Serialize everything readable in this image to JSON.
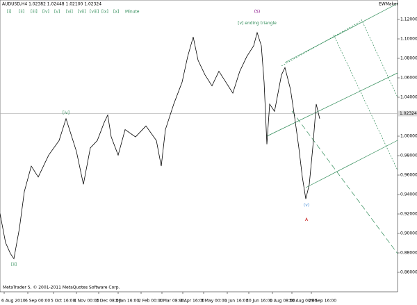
{
  "chart_data": {
    "type": "line",
    "title": "AUDUSD,H4  1.02382 1.02448 1.02100 1.02324",
    "wave_degrees": [
      "[i]",
      "[ii]",
      "[iii]",
      "[iv]",
      "[v]",
      "[vi]",
      "[vii]",
      "[viii]",
      "[ix]",
      "[x]",
      "Minute"
    ],
    "badge": "EWMaker",
    "footer": "MetaTrader 5, © 2001-2011 MetaQuotes Software Corp.",
    "x": [
      0,
      8,
      15,
      20,
      28,
      35,
      45,
      55,
      70,
      85,
      95,
      100,
      110,
      120,
      130,
      140,
      150,
      155,
      160,
      170,
      180,
      195,
      210,
      225,
      232,
      238,
      250,
      262,
      270,
      278,
      285,
      295,
      305,
      315,
      325,
      335,
      345,
      355,
      365,
      370,
      376,
      380,
      384,
      388,
      395,
      405,
      410,
      418,
      425,
      430,
      435,
      440,
      445,
      450,
      455,
      460
    ],
    "series": [
      {
        "name": "AUDUSD",
        "color": "#000000",
        "values": [
          0.9205,
          0.8905,
          0.87925,
          0.874,
          0.9055,
          0.943,
          0.96925,
          0.958,
          0.9805,
          0.9955,
          1.018,
          1.00675,
          0.98425,
          0.9505,
          0.988,
          0.9955,
          1.01425,
          1.02175,
          0.99925,
          0.9805,
          1.00675,
          0.99925,
          1.0105,
          0.9955,
          0.96925,
          1.00675,
          1.033,
          1.0555,
          1.08175,
          1.102,
          1.078,
          1.063,
          1.05175,
          1.06675,
          1.0555,
          1.04425,
          1.06675,
          1.08175,
          1.093,
          1.1065,
          1.093,
          1.0555,
          0.99175,
          1.033,
          1.0255,
          1.063,
          1.0705,
          1.048,
          1.01425,
          0.988,
          0.958,
          0.9355,
          0.9505,
          0.988,
          1.033,
          1.018
        ]
      }
    ],
    "xlim": [
      0,
      572
    ],
    "ylim": [
      0.84,
      1.14
    ],
    "xticks": [
      {
        "value": 6,
        "label": "6 Aug 2010"
      },
      {
        "value": 40,
        "label": "6 Sep 00:00"
      },
      {
        "value": 77,
        "label": "5 Oct 16:00"
      },
      {
        "value": 110,
        "label": "4 Nov 00:00"
      },
      {
        "value": 142,
        "label": "3 Dec 08:00"
      },
      {
        "value": 170,
        "label": "3 Jan 16:00"
      },
      {
        "value": 203,
        "label": "2 Feb 00:00"
      },
      {
        "value": 233,
        "label": "4 Mar 08:00"
      },
      {
        "value": 263,
        "label": "4 Apr 16:00"
      },
      {
        "value": 293,
        "label": "3 May 00:00"
      },
      {
        "value": 327,
        "label": "1 Jun 16:00"
      },
      {
        "value": 358,
        "label": "30 Jun 16:00"
      },
      {
        "value": 392,
        "label": "1 Aug 08:00"
      },
      {
        "value": 420,
        "label": "30 Aug 00:00"
      },
      {
        "value": 448,
        "label": "29 Sep 16:00"
      }
    ],
    "yticks": [
      {
        "value": 0.86,
        "label": "0.86000"
      },
      {
        "value": 0.88,
        "label": "0.88000"
      },
      {
        "value": 0.9,
        "label": "0.90000"
      },
      {
        "value": 0.92,
        "label": "0.92000"
      },
      {
        "value": 0.94,
        "label": "0.94000"
      },
      {
        "value": 0.96,
        "label": "0.96000"
      },
      {
        "value": 0.98,
        "label": "0.98000"
      },
      {
        "value": 1,
        "label": "1.00000"
      },
      {
        "value": 1.04,
        "label": "1.04000"
      },
      {
        "value": 1.06,
        "label": "1.06000"
      },
      {
        "value": 1.08,
        "label": "1.08000"
      },
      {
        "value": 1.1,
        "label": "1.10000"
      },
      {
        "value": 1.12,
        "label": "1.12000"
      }
    ],
    "last_price": {
      "value": 1.02324,
      "label": "1.02324"
    },
    "annotations": [
      {
        "text": "(5)",
        "x": 370,
        "y": 1.128,
        "color": "#800080"
      },
      {
        "text": "[v] ending triangle",
        "x": 370,
        "y": 1.116,
        "color": "#2e8b57"
      },
      {
        "text": "[iv]",
        "x": 95,
        "y": 1.024,
        "color": "#2e8b57"
      },
      {
        "text": "[ii]",
        "x": 20,
        "y": 0.868,
        "color": "#2e8b57"
      },
      {
        "text": "(v)",
        "x": 441,
        "y": 0.929,
        "color": "#4a90d9"
      },
      {
        "text": "A",
        "x": 441,
        "y": 0.914,
        "color": "#c00000"
      }
    ]
  }
}
